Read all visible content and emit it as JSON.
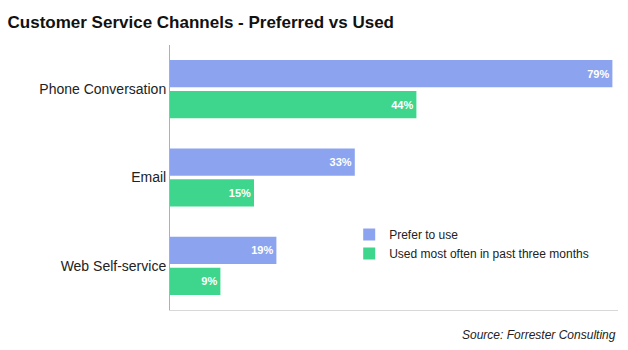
{
  "chart_data": {
    "type": "bar",
    "orientation": "horizontal",
    "title": "Customer Service Channels - Preferred vs Used",
    "categories": [
      "Phone Conversation",
      "Email",
      "Web Self-service"
    ],
    "series": [
      {
        "name": "Prefer to use",
        "color": "#8ca4ef",
        "values": [
          79,
          33,
          19
        ],
        "value_labels": [
          "79%",
          "33%",
          "19%"
        ]
      },
      {
        "name": "Used most often in past three months",
        "color": "#3ed68c",
        "values": [
          44,
          15,
          9
        ],
        "value_labels": [
          "44%",
          "15%",
          "9%"
        ]
      }
    ],
    "xlim": [
      0,
      80
    ],
    "data_labels": true,
    "tick_labels": "y",
    "grid": false,
    "legend": "right",
    "annotations": [
      "Source: Forrester Consulting"
    ]
  }
}
